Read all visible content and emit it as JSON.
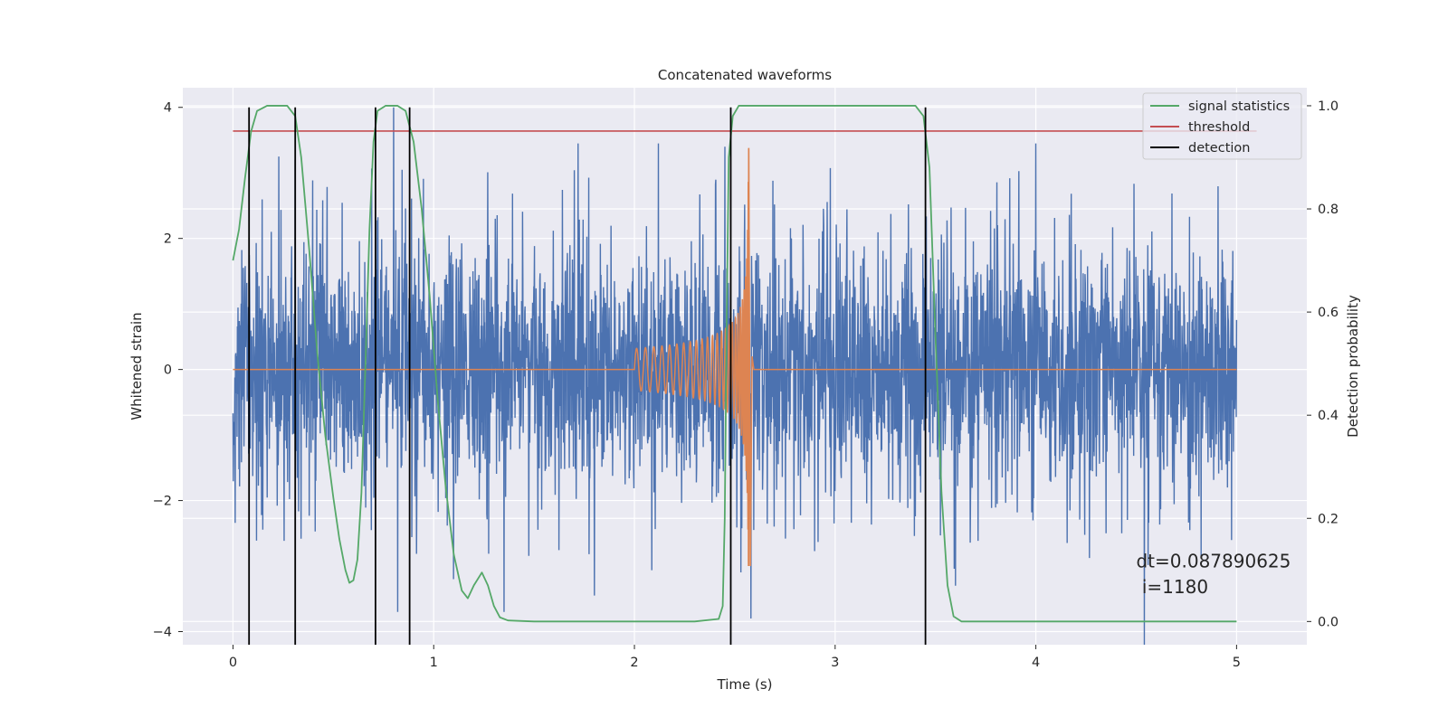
{
  "chart_data": {
    "type": "line",
    "title": "Concatenated waveforms",
    "xlabel": "Time (s)",
    "ylabel": "Whitened strain",
    "ylabel_right": "Detection probability",
    "xlim": [
      -0.25,
      5.35
    ],
    "ylim": [
      -4.2,
      4.3
    ],
    "ylim_right": [
      -0.045,
      1.035
    ],
    "xticks": [
      0,
      1,
      2,
      3,
      4,
      5
    ],
    "xtick_labels": [
      "0",
      "1",
      "2",
      "3",
      "4",
      "5"
    ],
    "yticks": [
      -4,
      -2,
      0,
      2,
      4
    ],
    "ytick_labels": [
      "−4",
      "−2",
      "0",
      "2",
      "4"
    ],
    "yticks_right": [
      0.0,
      0.2,
      0.4,
      0.6,
      0.8,
      1.0
    ],
    "ytick_labels_right": [
      "0.0",
      "0.2",
      "0.4",
      "0.6",
      "0.8",
      "1.0"
    ],
    "grid": true,
    "legend_position": "top-right",
    "annotation": {
      "line1": "dt=0.087890625",
      "line2": " i=1180",
      "x": 4.5,
      "y_prob_line1": 0.105,
      "y_prob_line2": 0.055
    },
    "series": [
      {
        "name": "",
        "kind": "noise",
        "color": "#4c72b0",
        "x_range": [
          0,
          5
        ],
        "typical_amplitude": 1.2,
        "max": 4.0,
        "min": -4.2,
        "spikes": [
          [
            0.8,
            4.0
          ],
          [
            0.82,
            -3.7
          ],
          [
            1.72,
            3.45
          ],
          [
            2.12,
            3.45
          ],
          [
            2.45,
            3.4
          ],
          [
            4.0,
            3.45
          ],
          [
            4.54,
            -4.2
          ],
          [
            2.58,
            -3.8
          ],
          [
            0.31,
            3.2
          ],
          [
            1.35,
            -3.7
          ],
          [
            1.8,
            -3.45
          ],
          [
            3.6,
            -3.3
          ]
        ]
      },
      {
        "name": "",
        "kind": "chirp",
        "color": "#dd8452",
        "x_range": [
          0,
          5
        ],
        "chirp_start": 2.0,
        "merger": 2.57,
        "peak_positive": 3.38,
        "peak_negative": -3.0
      },
      {
        "name": "signal statistics",
        "kind": "probability",
        "color": "#55a868",
        "axis": "right",
        "points": [
          [
            0.0,
            0.7
          ],
          [
            0.03,
            0.76
          ],
          [
            0.06,
            0.86
          ],
          [
            0.09,
            0.95
          ],
          [
            0.12,
            0.99
          ],
          [
            0.17,
            1.0
          ],
          [
            0.27,
            1.0
          ],
          [
            0.31,
            0.98
          ],
          [
            0.34,
            0.9
          ],
          [
            0.38,
            0.72
          ],
          [
            0.42,
            0.52
          ],
          [
            0.46,
            0.36
          ],
          [
            0.5,
            0.24
          ],
          [
            0.53,
            0.16
          ],
          [
            0.56,
            0.1
          ],
          [
            0.58,
            0.075
          ],
          [
            0.6,
            0.08
          ],
          [
            0.62,
            0.12
          ],
          [
            0.64,
            0.25
          ],
          [
            0.66,
            0.5
          ],
          [
            0.68,
            0.76
          ],
          [
            0.7,
            0.93
          ],
          [
            0.72,
            0.99
          ],
          [
            0.76,
            1.0
          ],
          [
            0.82,
            1.0
          ],
          [
            0.86,
            0.99
          ],
          [
            0.9,
            0.93
          ],
          [
            0.94,
            0.8
          ],
          [
            0.98,
            0.63
          ],
          [
            1.02,
            0.43
          ],
          [
            1.06,
            0.26
          ],
          [
            1.1,
            0.13
          ],
          [
            1.14,
            0.06
          ],
          [
            1.17,
            0.045
          ],
          [
            1.2,
            0.07
          ],
          [
            1.24,
            0.095
          ],
          [
            1.27,
            0.07
          ],
          [
            1.3,
            0.03
          ],
          [
            1.33,
            0.008
          ],
          [
            1.37,
            0.002
          ],
          [
            1.5,
            0.0
          ],
          [
            2.0,
            0.0
          ],
          [
            2.3,
            0.0
          ],
          [
            2.42,
            0.005
          ],
          [
            2.44,
            0.03
          ],
          [
            2.45,
            0.2
          ],
          [
            2.46,
            0.6
          ],
          [
            2.47,
            0.9
          ],
          [
            2.49,
            0.98
          ],
          [
            2.52,
            1.0
          ],
          [
            3.4,
            1.0
          ],
          [
            3.44,
            0.98
          ],
          [
            3.47,
            0.88
          ],
          [
            3.5,
            0.55
          ],
          [
            3.53,
            0.25
          ],
          [
            3.56,
            0.07
          ],
          [
            3.59,
            0.01
          ],
          [
            3.63,
            0.0
          ],
          [
            5.0,
            0.0
          ]
        ]
      },
      {
        "name": "threshold",
        "kind": "hline",
        "color": "#c44e52",
        "axis": "right",
        "value": 0.951,
        "x_range": [
          0,
          5.1
        ]
      },
      {
        "name": "detection",
        "kind": "vlines",
        "color": "#000000",
        "x": [
          0.08,
          0.31,
          0.71,
          0.88,
          2.48,
          3.45
        ],
        "y_range": [
          -4.2,
          4.0
        ]
      }
    ]
  }
}
